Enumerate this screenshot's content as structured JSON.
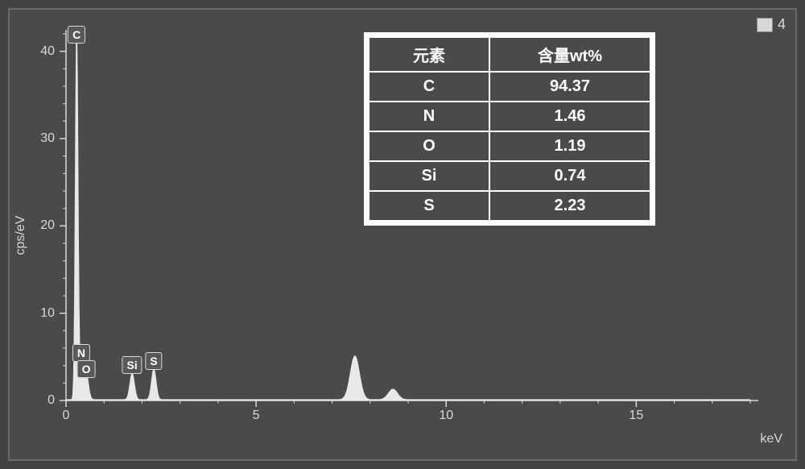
{
  "legend": {
    "label": "4"
  },
  "axes": {
    "ylabel": "cps/eV",
    "xlabel": "keV",
    "xlim": [
      0,
      18
    ],
    "ylim": [
      0,
      42
    ],
    "yticks": [
      0,
      10,
      20,
      30,
      40
    ],
    "xticks": [
      0,
      5,
      10,
      15
    ],
    "axis_color": "#d8d8d8",
    "tick_color": "#d8d8d8",
    "background": "#4a4a4a"
  },
  "spectrum": {
    "type": "line",
    "line_color": "#e8e8e8",
    "fill_color": "#e8e8e8",
    "peaks": [
      {
        "label": "C",
        "x": 0.28,
        "height": 42
      },
      {
        "label": "N",
        "x": 0.4,
        "height": 4
      },
      {
        "label": "O",
        "x": 0.53,
        "height": 3
      },
      {
        "label": "Si",
        "x": 1.74,
        "height": 3
      },
      {
        "label": "S",
        "x": 2.31,
        "height": 3.5
      },
      {
        "label": "",
        "x": 7.6,
        "height": 5
      },
      {
        "label": "",
        "x": 8.6,
        "height": 1.2
      }
    ]
  },
  "table": {
    "headers": {
      "element": "元素",
      "wt": "含量wt%"
    },
    "rows": [
      {
        "element": "C",
        "wt": "94.37"
      },
      {
        "element": "N",
        "wt": "1.46"
      },
      {
        "element": "O",
        "wt": "1.19"
      },
      {
        "element": "Si",
        "wt": "0.74"
      },
      {
        "element": "S",
        "wt": "2.23"
      }
    ],
    "border_color": "#ffffff",
    "text_color": "#ffffff"
  }
}
